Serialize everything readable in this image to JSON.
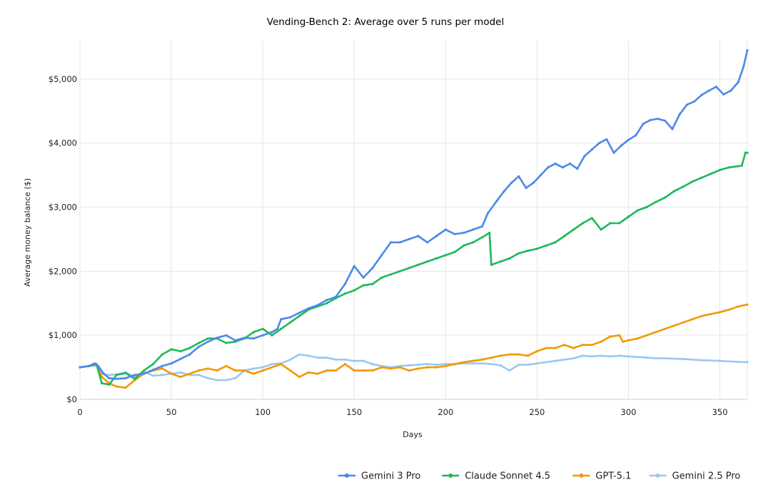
{
  "chart_data": {
    "type": "line",
    "title": "Vending-Bench 2: Average over 5 runs per model",
    "xlabel": "Days",
    "ylabel": "Average money balance ($)",
    "xlim": [
      0,
      365
    ],
    "ylim": [
      0,
      5600
    ],
    "x_ticks": [
      0,
      50,
      100,
      150,
      200,
      250,
      300,
      350
    ],
    "x_tick_labels": [
      "0",
      "50",
      "100",
      "150",
      "200",
      "250",
      "300",
      "350"
    ],
    "y_ticks": [
      0,
      1000,
      2000,
      3000,
      4000,
      5000
    ],
    "y_tick_labels": [
      "$0",
      "$1,000",
      "$2,000",
      "$3,000",
      "$4,000",
      "$5,000"
    ],
    "grid": true,
    "legend_position": "bottom-right",
    "series": [
      {
        "name": "Gemini 3 Pro",
        "color": "#4a89e8",
        "points": [
          [
            0,
            500
          ],
          [
            5,
            520
          ],
          [
            8,
            560
          ],
          [
            10,
            520
          ],
          [
            13,
            400
          ],
          [
            16,
            330
          ],
          [
            20,
            320
          ],
          [
            25,
            330
          ],
          [
            30,
            380
          ],
          [
            35,
            400
          ],
          [
            40,
            460
          ],
          [
            45,
            520
          ],
          [
            50,
            560
          ],
          [
            55,
            630
          ],
          [
            60,
            700
          ],
          [
            65,
            820
          ],
          [
            70,
            900
          ],
          [
            75,
            960
          ],
          [
            80,
            1000
          ],
          [
            85,
            920
          ],
          [
            90,
            960
          ],
          [
            95,
            950
          ],
          [
            100,
            1000
          ],
          [
            105,
            1050
          ],
          [
            108,
            1100
          ],
          [
            110,
            1250
          ],
          [
            115,
            1280
          ],
          [
            120,
            1350
          ],
          [
            125,
            1420
          ],
          [
            130,
            1470
          ],
          [
            135,
            1550
          ],
          [
            140,
            1600
          ],
          [
            145,
            1800
          ],
          [
            150,
            2080
          ],
          [
            155,
            1900
          ],
          [
            160,
            2050
          ],
          [
            165,
            2250
          ],
          [
            170,
            2450
          ],
          [
            175,
            2450
          ],
          [
            180,
            2500
          ],
          [
            185,
            2550
          ],
          [
            190,
            2450
          ],
          [
            195,
            2550
          ],
          [
            200,
            2650
          ],
          [
            205,
            2580
          ],
          [
            210,
            2600
          ],
          [
            215,
            2650
          ],
          [
            220,
            2700
          ],
          [
            223,
            2900
          ],
          [
            228,
            3100
          ],
          [
            232,
            3250
          ],
          [
            236,
            3380
          ],
          [
            240,
            3480
          ],
          [
            244,
            3300
          ],
          [
            248,
            3380
          ],
          [
            252,
            3500
          ],
          [
            256,
            3620
          ],
          [
            260,
            3680
          ],
          [
            264,
            3620
          ],
          [
            268,
            3680
          ],
          [
            272,
            3600
          ],
          [
            276,
            3800
          ],
          [
            280,
            3900
          ],
          [
            284,
            4000
          ],
          [
            288,
            4060
          ],
          [
            292,
            3850
          ],
          [
            296,
            3960
          ],
          [
            300,
            4050
          ],
          [
            304,
            4120
          ],
          [
            308,
            4300
          ],
          [
            312,
            4360
          ],
          [
            316,
            4380
          ],
          [
            320,
            4350
          ],
          [
            324,
            4220
          ],
          [
            328,
            4450
          ],
          [
            332,
            4600
          ],
          [
            336,
            4650
          ],
          [
            340,
            4750
          ],
          [
            344,
            4820
          ],
          [
            348,
            4880
          ],
          [
            352,
            4760
          ],
          [
            356,
            4820
          ],
          [
            360,
            4950
          ],
          [
            363,
            5200
          ],
          [
            365,
            5450
          ]
        ]
      },
      {
        "name": "Claude Sonnet 4.5",
        "color": "#1eb85a",
        "points": [
          [
            0,
            500
          ],
          [
            5,
            520
          ],
          [
            9,
            550
          ],
          [
            12,
            250
          ],
          [
            16,
            230
          ],
          [
            20,
            380
          ],
          [
            25,
            410
          ],
          [
            30,
            320
          ],
          [
            35,
            450
          ],
          [
            40,
            550
          ],
          [
            45,
            700
          ],
          [
            50,
            780
          ],
          [
            55,
            750
          ],
          [
            60,
            800
          ],
          [
            65,
            880
          ],
          [
            70,
            950
          ],
          [
            75,
            950
          ],
          [
            80,
            880
          ],
          [
            85,
            900
          ],
          [
            90,
            950
          ],
          [
            95,
            1050
          ],
          [
            100,
            1100
          ],
          [
            105,
            1000
          ],
          [
            110,
            1100
          ],
          [
            115,
            1200
          ],
          [
            120,
            1300
          ],
          [
            125,
            1400
          ],
          [
            130,
            1450
          ],
          [
            135,
            1500
          ],
          [
            140,
            1580
          ],
          [
            145,
            1650
          ],
          [
            150,
            1700
          ],
          [
            155,
            1780
          ],
          [
            160,
            1800
          ],
          [
            165,
            1900
          ],
          [
            170,
            1950
          ],
          [
            175,
            2000
          ],
          [
            180,
            2050
          ],
          [
            185,
            2100
          ],
          [
            190,
            2150
          ],
          [
            195,
            2200
          ],
          [
            200,
            2250
          ],
          [
            205,
            2300
          ],
          [
            210,
            2400
          ],
          [
            215,
            2450
          ],
          [
            220,
            2530
          ],
          [
            224,
            2600
          ],
          [
            225,
            2100
          ],
          [
            230,
            2150
          ],
          [
            235,
            2200
          ],
          [
            240,
            2280
          ],
          [
            245,
            2320
          ],
          [
            250,
            2350
          ],
          [
            255,
            2400
          ],
          [
            260,
            2450
          ],
          [
            265,
            2550
          ],
          [
            270,
            2650
          ],
          [
            275,
            2750
          ],
          [
            280,
            2830
          ],
          [
            285,
            2650
          ],
          [
            290,
            2750
          ],
          [
            295,
            2750
          ],
          [
            300,
            2850
          ],
          [
            305,
            2950
          ],
          [
            310,
            3000
          ],
          [
            315,
            3080
          ],
          [
            320,
            3150
          ],
          [
            325,
            3250
          ],
          [
            330,
            3320
          ],
          [
            335,
            3400
          ],
          [
            340,
            3460
          ],
          [
            345,
            3520
          ],
          [
            350,
            3580
          ],
          [
            355,
            3620
          ],
          [
            360,
            3640
          ],
          [
            362,
            3650
          ],
          [
            364,
            3850
          ],
          [
            365,
            3850
          ]
        ]
      },
      {
        "name": "GPT-5.1",
        "color": "#f29900",
        "points": [
          [
            0,
            500
          ],
          [
            5,
            520
          ],
          [
            9,
            540
          ],
          [
            12,
            350
          ],
          [
            16,
            250
          ],
          [
            20,
            200
          ],
          [
            25,
            180
          ],
          [
            30,
            300
          ],
          [
            35,
            400
          ],
          [
            40,
            450
          ],
          [
            45,
            480
          ],
          [
            50,
            400
          ],
          [
            55,
            350
          ],
          [
            60,
            400
          ],
          [
            65,
            450
          ],
          [
            70,
            480
          ],
          [
            75,
            450
          ],
          [
            80,
            520
          ],
          [
            85,
            450
          ],
          [
            90,
            450
          ],
          [
            95,
            400
          ],
          [
            100,
            450
          ],
          [
            105,
            500
          ],
          [
            110,
            550
          ],
          [
            115,
            450
          ],
          [
            120,
            350
          ],
          [
            125,
            420
          ],
          [
            130,
            400
          ],
          [
            135,
            450
          ],
          [
            140,
            450
          ],
          [
            145,
            550
          ],
          [
            150,
            450
          ],
          [
            155,
            450
          ],
          [
            160,
            450
          ],
          [
            165,
            500
          ],
          [
            170,
            480
          ],
          [
            175,
            500
          ],
          [
            180,
            450
          ],
          [
            185,
            480
          ],
          [
            190,
            500
          ],
          [
            195,
            500
          ],
          [
            200,
            520
          ],
          [
            205,
            550
          ],
          [
            210,
            580
          ],
          [
            215,
            600
          ],
          [
            220,
            620
          ],
          [
            225,
            650
          ],
          [
            230,
            680
          ],
          [
            235,
            700
          ],
          [
            240,
            700
          ],
          [
            245,
            680
          ],
          [
            250,
            750
          ],
          [
            255,
            800
          ],
          [
            260,
            800
          ],
          [
            265,
            850
          ],
          [
            270,
            800
          ],
          [
            275,
            850
          ],
          [
            280,
            850
          ],
          [
            285,
            900
          ],
          [
            290,
            980
          ],
          [
            295,
            1000
          ],
          [
            297,
            900
          ],
          [
            300,
            920
          ],
          [
            305,
            950
          ],
          [
            310,
            1000
          ],
          [
            315,
            1050
          ],
          [
            320,
            1100
          ],
          [
            325,
            1150
          ],
          [
            330,
            1200
          ],
          [
            335,
            1250
          ],
          [
            340,
            1300
          ],
          [
            345,
            1330
          ],
          [
            350,
            1360
          ],
          [
            355,
            1400
          ],
          [
            360,
            1450
          ],
          [
            365,
            1480
          ]
        ]
      },
      {
        "name": "Gemini 2.5 Pro",
        "color": "#99c8f2",
        "points": [
          [
            0,
            500
          ],
          [
            5,
            520
          ],
          [
            9,
            530
          ],
          [
            12,
            400
          ],
          [
            16,
            380
          ],
          [
            20,
            390
          ],
          [
            25,
            420
          ],
          [
            30,
            350
          ],
          [
            35,
            430
          ],
          [
            40,
            370
          ],
          [
            45,
            380
          ],
          [
            50,
            400
          ],
          [
            55,
            420
          ],
          [
            60,
            380
          ],
          [
            65,
            380
          ],
          [
            70,
            330
          ],
          [
            75,
            300
          ],
          [
            80,
            300
          ],
          [
            85,
            330
          ],
          [
            90,
            450
          ],
          [
            95,
            480
          ],
          [
            100,
            500
          ],
          [
            105,
            550
          ],
          [
            110,
            560
          ],
          [
            115,
            620
          ],
          [
            120,
            700
          ],
          [
            125,
            680
          ],
          [
            130,
            650
          ],
          [
            135,
            650
          ],
          [
            140,
            620
          ],
          [
            145,
            620
          ],
          [
            150,
            600
          ],
          [
            155,
            600
          ],
          [
            160,
            550
          ],
          [
            165,
            520
          ],
          [
            170,
            500
          ],
          [
            175,
            520
          ],
          [
            180,
            530
          ],
          [
            185,
            540
          ],
          [
            190,
            550
          ],
          [
            195,
            540
          ],
          [
            200,
            550
          ],
          [
            205,
            550
          ],
          [
            210,
            560
          ],
          [
            215,
            560
          ],
          [
            220,
            560
          ],
          [
            225,
            550
          ],
          [
            230,
            530
          ],
          [
            235,
            450
          ],
          [
            240,
            540
          ],
          [
            245,
            540
          ],
          [
            250,
            560
          ],
          [
            255,
            580
          ],
          [
            260,
            600
          ],
          [
            265,
            620
          ],
          [
            270,
            640
          ],
          [
            275,
            680
          ],
          [
            280,
            670
          ],
          [
            285,
            680
          ],
          [
            290,
            670
          ],
          [
            295,
            680
          ],
          [
            300,
            670
          ],
          [
            305,
            660
          ],
          [
            310,
            650
          ],
          [
            315,
            640
          ],
          [
            320,
            640
          ],
          [
            330,
            630
          ],
          [
            340,
            610
          ],
          [
            350,
            600
          ],
          [
            360,
            585
          ],
          [
            365,
            580
          ]
        ]
      }
    ]
  }
}
